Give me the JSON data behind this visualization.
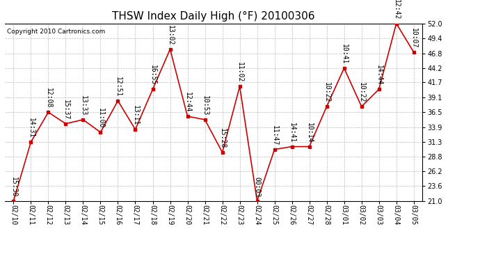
{
  "title": "THSW Index Daily High (°F) 20100306",
  "copyright": "Copyright 2010 Cartronics.com",
  "x_labels": [
    "02/10",
    "02/11",
    "02/12",
    "02/13",
    "02/14",
    "02/15",
    "02/16",
    "02/17",
    "02/18",
    "02/19",
    "02/20",
    "02/21",
    "02/22",
    "02/23",
    "02/24",
    "02/25",
    "02/26",
    "02/27",
    "02/28",
    "03/01",
    "03/02",
    "03/03",
    "03/04",
    "03/05"
  ],
  "y_values": [
    21.0,
    31.3,
    36.5,
    34.5,
    35.2,
    33.0,
    38.5,
    33.5,
    40.5,
    47.5,
    35.8,
    35.2,
    29.5,
    41.0,
    21.0,
    30.0,
    30.5,
    30.5,
    37.5,
    44.2,
    37.5,
    40.5,
    52.0,
    47.0
  ],
  "time_labels": [
    "15:30",
    "14:31",
    "12:08",
    "15:37",
    "13:33",
    "11:00",
    "12:51",
    "13:11",
    "16:55",
    "13:02",
    "12:44",
    "10:53",
    "15:28",
    "11:02",
    "00:03",
    "11:47",
    "14:41",
    "10:14",
    "10:22",
    "10:41",
    "10:22",
    "14:44",
    "12:42",
    "10:07"
  ],
  "ylim": [
    21.0,
    52.0
  ],
  "yticks": [
    21.0,
    23.6,
    26.2,
    28.8,
    31.3,
    33.9,
    36.5,
    39.1,
    41.7,
    44.2,
    46.8,
    49.4,
    52.0
  ],
  "line_color": "#cc0000",
  "marker_color": "#cc0000",
  "bg_color": "#ffffff",
  "plot_bg_color": "#ffffff",
  "grid_color": "#bbbbbb",
  "title_fontsize": 11,
  "tick_fontsize": 7,
  "label_fontsize": 7
}
